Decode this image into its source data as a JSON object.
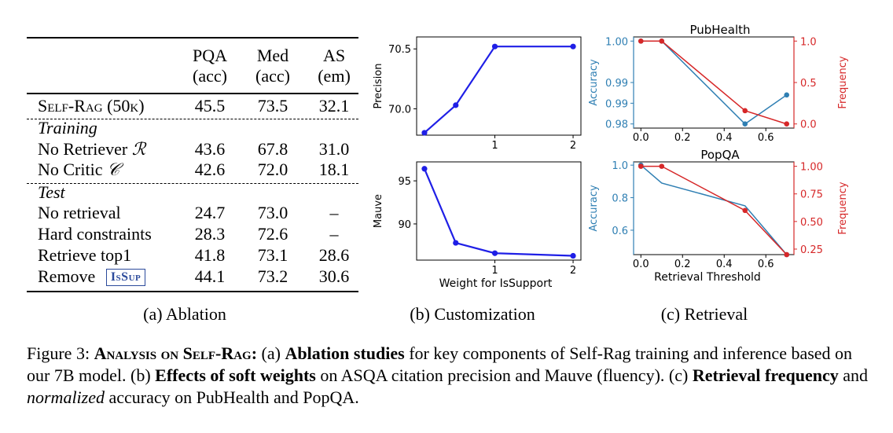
{
  "table": {
    "headers": [
      {
        "line1": "PQA",
        "line2": "(acc)"
      },
      {
        "line1": "Med",
        "line2": "(acc)"
      },
      {
        "line1": "AS",
        "line2": "(em)"
      }
    ],
    "main_row": {
      "label": "Self-Rag (50k)",
      "values": [
        "45.5",
        "73.5",
        "32.1"
      ]
    },
    "training_label": "Training",
    "training_rows": [
      {
        "label": "No Retriever",
        "symbol": "ℛ",
        "values": [
          "43.6",
          "67.8",
          "31.0"
        ]
      },
      {
        "label": "No Critic",
        "symbol": "𝒞",
        "values": [
          "42.6",
          "72.0",
          "18.1"
        ]
      }
    ],
    "test_label": "Test",
    "test_rows": [
      {
        "label": "No retrieval",
        "values": [
          "24.7",
          "73.0",
          "–"
        ]
      },
      {
        "label": "Hard constraints",
        "values": [
          "28.3",
          "72.6",
          "–"
        ]
      },
      {
        "label": "Retrieve top1",
        "values": [
          "41.8",
          "73.1",
          "28.6"
        ]
      },
      {
        "label": "Remove",
        "badge": "IsSup",
        "values": [
          "44.1",
          "73.2",
          "30.6"
        ]
      }
    ]
  },
  "subcaptions": {
    "a": "(a) Ablation",
    "b": "(b) Customization",
    "c": "(c) Retrieval"
  },
  "caption": {
    "prefix": "Figure 3: ",
    "bold1": "Analysis on Self-Rag:",
    "t1": " (a) ",
    "bold2": "Ablation studies",
    "t2": " for key components of Self-Rag training and inference based on our 7B model. (b) ",
    "bold3": "Effects of soft weights",
    "t3": " on ASQA citation precision and Mauve (fluency). (c) ",
    "bold4": "Retrieval frequency",
    "t4": " and ",
    "italic1": "normalized",
    "t5": " accuracy on PubHealth and PopQA."
  },
  "colors": {
    "customization_line": "#1f1fe6",
    "accuracy": "#2f7fb3",
    "frequency": "#d62728"
  },
  "chart_data": [
    {
      "type": "line",
      "id": "precision",
      "xlabel": "",
      "ylabel": "Precision",
      "x": [
        0.1,
        0.5,
        1.0,
        2.0
      ],
      "series": [
        {
          "values": [
            69.8,
            70.03,
            70.52,
            70.52
          ]
        }
      ],
      "xticks": [
        "1",
        "2"
      ],
      "yticks": [
        "70.0",
        "70.5"
      ],
      "xlim": [
        0.0,
        2.1
      ],
      "ylim": [
        69.78,
        70.6
      ]
    },
    {
      "type": "line",
      "id": "mauve",
      "xlabel": "Weight for IsSupport",
      "ylabel": "Mauve",
      "x": [
        0.1,
        0.5,
        1.0,
        2.0
      ],
      "series": [
        {
          "values": [
            96.4,
            87.8,
            86.6,
            86.3
          ]
        }
      ],
      "xticks": [
        "1",
        "2"
      ],
      "yticks": [
        "90",
        "95"
      ],
      "xlim": [
        0.0,
        2.1
      ],
      "ylim": [
        85.8,
        97.2
      ]
    },
    {
      "type": "line",
      "id": "pubhealth",
      "title": "PubHealth",
      "xlabel": "",
      "ylabel": "Accuracy",
      "ylabel_right": "Frequency",
      "x": [
        0.0,
        0.1,
        0.5,
        0.7
      ],
      "series": [
        {
          "name": "Accuracy",
          "axis": "left",
          "values": [
            1.0,
            1.0,
            0.98,
            0.987
          ]
        },
        {
          "name": "Frequency",
          "axis": "right",
          "values": [
            1.0,
            1.0,
            0.16,
            0.0
          ]
        }
      ],
      "xticks": [
        "0.0",
        "0.2",
        "0.4",
        "0.6"
      ],
      "yticks_left": [
        "0.98",
        "0.99",
        "0.99",
        "1.00"
      ],
      "yticks_right": [
        "0.0",
        "0.5",
        "1.0"
      ],
      "xlim": [
        -0.035,
        0.735
      ],
      "ylim_left": [
        0.979,
        1.001
      ],
      "ylim_right": [
        -0.05,
        1.05
      ]
    },
    {
      "type": "line",
      "id": "popqa",
      "title": "PopQA",
      "xlabel": "Retrieval Threshold",
      "ylabel": "Accuracy",
      "ylabel_right": "Frequency",
      "x": [
        0.0,
        0.1,
        0.5,
        0.7
      ],
      "series": [
        {
          "name": "Accuracy",
          "axis": "left",
          "values": [
            1.0,
            0.89,
            0.75,
            0.45
          ]
        },
        {
          "name": "Frequency",
          "axis": "right",
          "values": [
            1.0,
            1.0,
            0.6,
            0.2
          ]
        }
      ],
      "xticks": [
        "0.0",
        "0.2",
        "0.4",
        "0.6"
      ],
      "yticks_left": [
        "0.6",
        "0.8",
        "1.0"
      ],
      "yticks_right": [
        "0.25",
        "0.50",
        "0.75",
        "1.00"
      ],
      "xlim": [
        -0.035,
        0.735
      ],
      "ylim_left": [
        0.45,
        1.02
      ],
      "ylim_right": [
        0.2,
        1.04
      ]
    }
  ]
}
